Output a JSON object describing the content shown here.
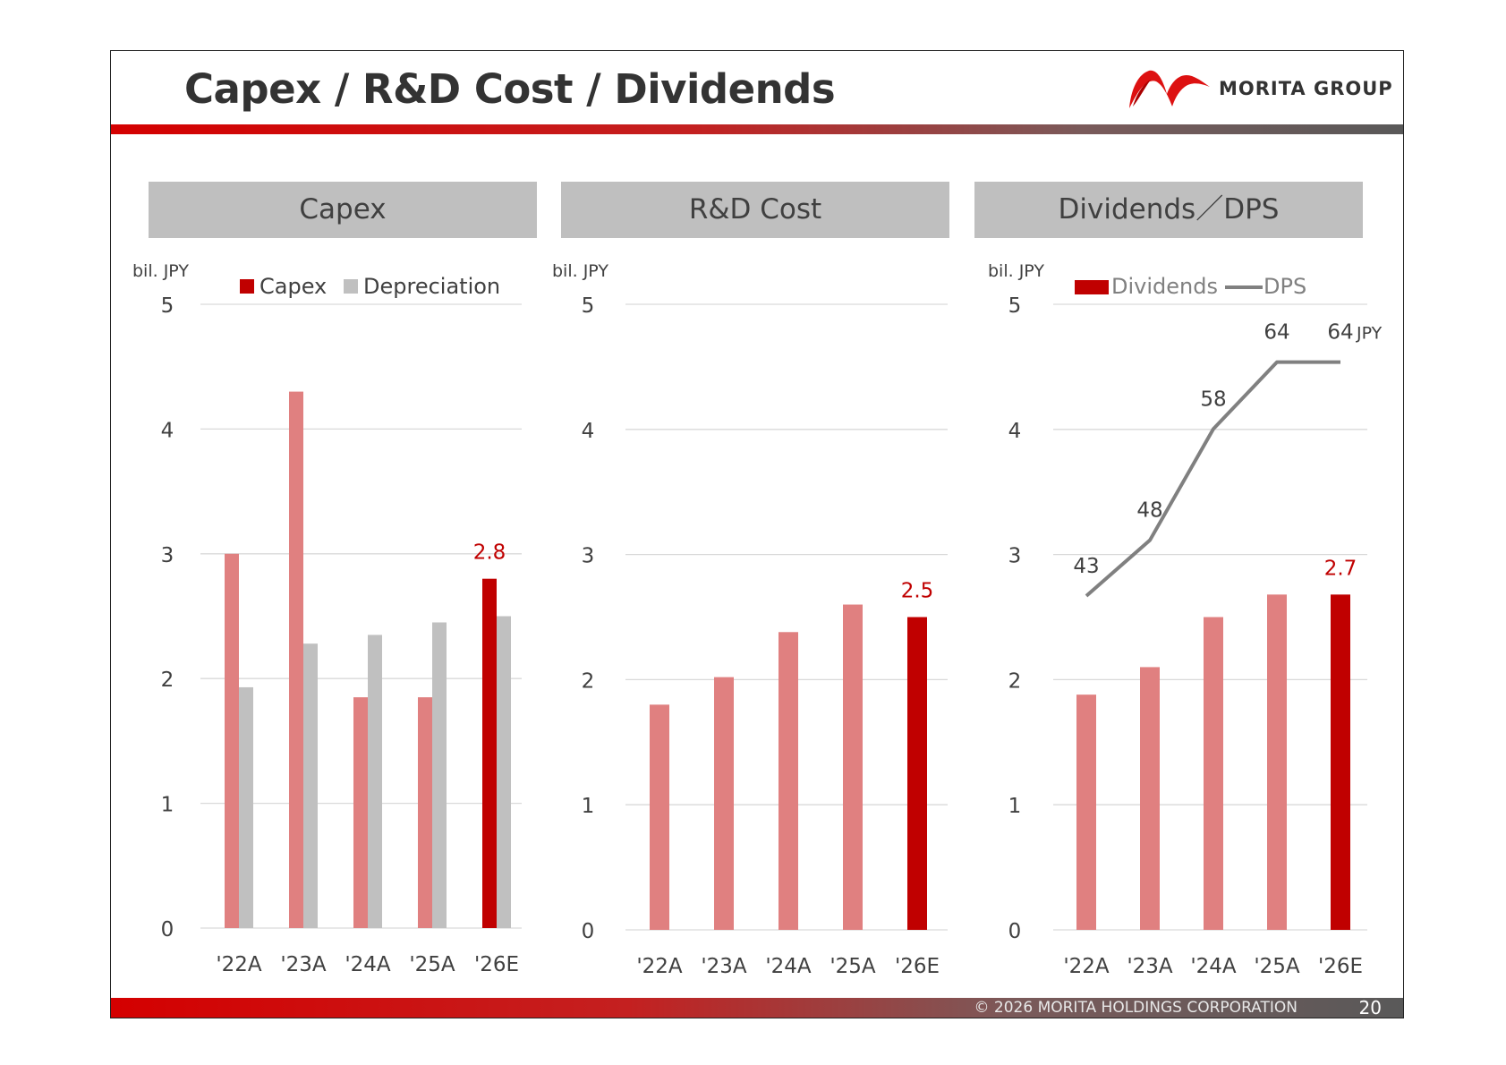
{
  "slide": {
    "title": "Capex / R&D Cost / Dividends",
    "logo_text": "MORITA GROUP",
    "footer": "© 2026 MORITA HOLDINGS CORPORATION",
    "page_number": "20"
  },
  "colors": {
    "actual_bar": "#e08080",
    "forecast_bar": "#c00000",
    "depreciation_bar": "#c0c0c0",
    "dps_line": "#808080",
    "grid": "#d9d9d9",
    "forecast_label": "#c00000"
  },
  "chart_data": [
    {
      "type": "bar",
      "header": "Capex",
      "unit_label": "bil. JPY",
      "categories": [
        "'22A",
        "'23A",
        "'24A",
        "'25A",
        "'26E"
      ],
      "series": [
        {
          "name": "Capex",
          "values": [
            3.0,
            4.3,
            1.85,
            1.85,
            2.8
          ]
        },
        {
          "name": "Depreciation",
          "values": [
            1.93,
            2.28,
            2.35,
            2.45,
            2.5
          ]
        }
      ],
      "data_labels": [
        {
          "category": "'26E",
          "text": "2.8"
        }
      ],
      "ylim": [
        0,
        5
      ],
      "yticks": [
        0,
        1,
        2,
        3,
        4,
        5
      ],
      "grid": true,
      "legend": "top"
    },
    {
      "type": "bar",
      "header": "R&D Cost",
      "unit_label": "bil. JPY",
      "categories": [
        "'22A",
        "'23A",
        "'24A",
        "'25A",
        "'26E"
      ],
      "series": [
        {
          "values": [
            1.8,
            2.02,
            2.38,
            2.6,
            2.5
          ]
        }
      ],
      "data_labels": [
        {
          "category": "'26E",
          "text": "2.5"
        }
      ],
      "ylim": [
        0,
        5
      ],
      "yticks": [
        0,
        1,
        2,
        3,
        4,
        5
      ],
      "grid": true
    },
    {
      "type": "bar",
      "header": "Dividends／DPS",
      "unit_label": "bil. JPY",
      "categories": [
        "'22A",
        "'23A",
        "'24A",
        "'25A",
        "'26E"
      ],
      "series": [
        {
          "name": "Dividends",
          "values": [
            1.88,
            2.1,
            2.5,
            2.68,
            2.68
          ]
        },
        {
          "name": "DPS",
          "type": "line",
          "values": [
            43,
            48,
            58,
            64,
            64
          ],
          "unit": "JPY",
          "display_range": [
            13,
            69.2
          ]
        }
      ],
      "data_labels": [
        {
          "category": "'26E",
          "text": "2.7"
        }
      ],
      "ylim": [
        0,
        5
      ],
      "yticks": [
        0,
        1,
        2,
        3,
        4,
        5
      ],
      "grid": true,
      "legend": "top"
    }
  ]
}
